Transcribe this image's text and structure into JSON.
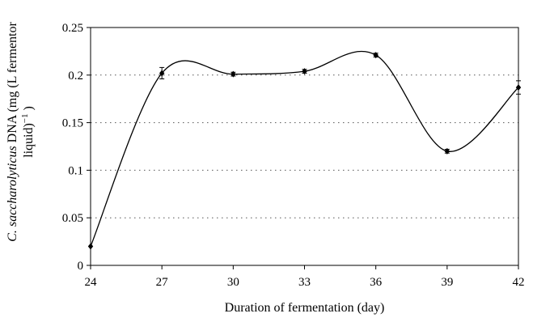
{
  "chart_data": {
    "type": "line",
    "title": "",
    "xlabel": "Duration of fermentation (day)",
    "ylabel": {
      "italic_part": "C. saccharolyticus",
      "line1_rest": " DNA (mg (L fermentor",
      "line2": "liquid)",
      "line2_sup": "−1",
      "line2_end": " )"
    },
    "x_ticks": [
      "24",
      "27",
      "30",
      "33",
      "36",
      "39",
      "42"
    ],
    "y_ticks": [
      "0",
      "0.05",
      "0.1",
      "0.15",
      "0.2",
      "0.25"
    ],
    "xlim": [
      24,
      42
    ],
    "ylim": [
      0,
      0.25
    ],
    "grid": "horizontal-dotted",
    "smoothed": true,
    "marker": "diamond",
    "series": [
      {
        "name": "",
        "x": [
          24,
          27,
          30,
          33,
          36,
          39,
          42
        ],
        "y": [
          0.02,
          0.202,
          0.201,
          0.204,
          0.221,
          0.12,
          0.187
        ],
        "err": [
          0,
          0.006,
          0.002,
          0.002,
          0.002,
          0.002,
          0.007
        ]
      }
    ],
    "colors": {
      "line": "#000000",
      "grid": "#555555",
      "axis": "#000000"
    }
  }
}
